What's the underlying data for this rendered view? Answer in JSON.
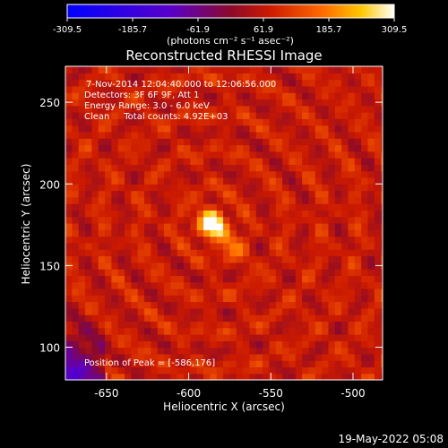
{
  "chart_data": {
    "type": "heatmap",
    "title": "Reconstructed RHESSI Image",
    "colorbar": {
      "ticks": [
        "-309.5",
        "-185.7",
        "-61.9",
        "61.9",
        "185.7",
        "309.5"
      ],
      "unit_label": "(photons cm⁻² s⁻¹ asec⁻²)",
      "min": -309.5,
      "max": 309.5
    },
    "annotations": [
      "7-Nov-2014 12:04:40.000 to 12:06:56.000",
      "Detectors: 3F 6F 9F, Att 1",
      "Energy Range: 3.0 - 6.0 keV",
      "Clean     Total counts: 4.92E+03"
    ],
    "peak_label": "Position of Peak = [-586,176]",
    "peak": {
      "x": -586,
      "y": 176
    },
    "xlabel": "Heliocentric X (arcsec)",
    "ylabel": "Heliocentric Y (arcsec)",
    "xlim": [
      -675,
      -482
    ],
    "ylim": [
      80,
      272
    ],
    "xticks": [
      {
        "value": -650,
        "label": "-650"
      },
      {
        "value": -600,
        "label": "-600"
      },
      {
        "value": -550,
        "label": "-550"
      },
      {
        "value": -500,
        "label": "-500"
      }
    ],
    "yticks": [
      {
        "value": 100,
        "label": "100"
      },
      {
        "value": 150,
        "label": "150"
      },
      {
        "value": 200,
        "label": "200"
      },
      {
        "value": 250,
        "label": "250"
      }
    ],
    "background_level": 70
  },
  "footer_date": "19-May-2022 05:08"
}
